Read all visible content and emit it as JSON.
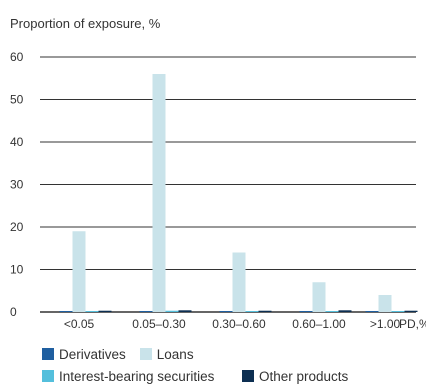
{
  "chart_data": {
    "type": "bar",
    "ylabel": "Proportion of exposure, %",
    "xlabel": "PD,%",
    "categories": [
      "<0.05",
      "0.05–0.30",
      "0.30–0.60",
      "0.60–1.00",
      ">1.00"
    ],
    "ylim": [
      0,
      60
    ],
    "yticks": [
      0,
      10,
      20,
      30,
      40,
      50,
      60
    ],
    "grid": true,
    "legend_position": "bottom",
    "series": [
      {
        "name": "Derivatives",
        "color": "#1f5fa0",
        "values": [
          0.2,
          0.2,
          0.1,
          0.1,
          0.1
        ]
      },
      {
        "name": "Loans",
        "color": "#c9e3ea",
        "values": [
          19,
          56,
          14,
          7,
          4
        ]
      },
      {
        "name": "Interest-bearing securities",
        "color": "#54bfdc",
        "values": [
          0.1,
          0.3,
          0.1,
          0.1,
          0.1
        ]
      },
      {
        "name": "Other products",
        "color": "#0d2f52",
        "values": [
          0.3,
          0.4,
          0.3,
          0.4,
          0.3
        ]
      }
    ]
  },
  "legend": {
    "items": [
      {
        "label": "Derivatives",
        "color": "#1f5fa0"
      },
      {
        "label": "Loans",
        "color": "#c9e3ea"
      },
      {
        "label": "Interest-bearing securities",
        "color": "#54bfdc"
      },
      {
        "label": "Other products",
        "color": "#0d2f52"
      }
    ]
  }
}
